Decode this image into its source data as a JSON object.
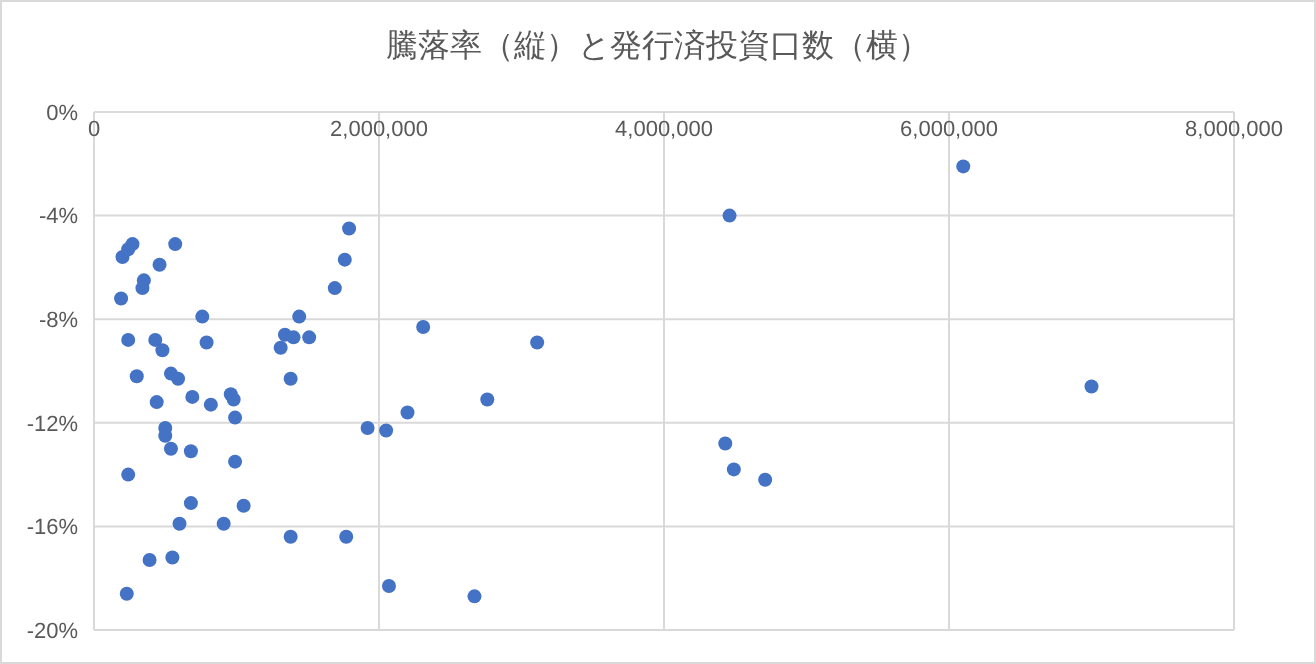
{
  "chart_data": {
    "type": "scatter",
    "title": "騰落率（縦）と発行済投資口数（横）",
    "x": [
      190000,
      200000,
      240000,
      270000,
      570000,
      460000,
      350000,
      340000,
      760000,
      790000,
      240000,
      430000,
      480000,
      300000,
      540000,
      590000,
      1310000,
      1340000,
      1400000,
      1440000,
      1510000,
      1690000,
      1760000,
      1790000,
      2310000,
      3110000,
      1380000,
      440000,
      690000,
      820000,
      960000,
      980000,
      990000,
      500000,
      500000,
      540000,
      680000,
      990000,
      240000,
      680000,
      1050000,
      600000,
      910000,
      1380000,
      1770000,
      390000,
      550000,
      230000,
      1920000,
      2050000,
      2200000,
      2760000,
      2070000,
      2670000,
      6100000,
      4460000,
      7000000,
      4430000,
      4490000,
      4710000
    ],
    "values": [
      -7.2,
      -5.6,
      -5.3,
      -5.1,
      -5.1,
      -5.9,
      -6.5,
      -6.8,
      -7.9,
      -8.9,
      -8.8,
      -8.8,
      -9.2,
      -10.2,
      -10.1,
      -10.3,
      -9.1,
      -8.6,
      -8.7,
      -7.9,
      -8.7,
      -6.8,
      -5.7,
      -4.5,
      -8.3,
      -8.9,
      -10.3,
      -11.2,
      -11.0,
      -11.3,
      -10.9,
      -11.1,
      -11.8,
      -12.2,
      -12.5,
      -13.0,
      -13.1,
      -13.5,
      -14.0,
      -15.1,
      -15.2,
      -15.9,
      -15.9,
      -16.4,
      -16.4,
      -17.3,
      -17.2,
      -18.6,
      -12.2,
      -12.3,
      -11.6,
      -11.1,
      -18.3,
      -18.7,
      -2.1,
      -4.0,
      -10.6,
      -12.8,
      -13.8,
      -14.2
    ],
    "color": "#4472c4",
    "marker": "circle",
    "grid": true,
    "xlim": [
      0,
      8000000
    ],
    "xticks": [
      {
        "value": 0,
        "label": "0"
      },
      {
        "value": 2000000,
        "label": "2,000,000"
      },
      {
        "value": 4000000,
        "label": "4,000,000"
      },
      {
        "value": 6000000,
        "label": "6,000,000"
      },
      {
        "value": 8000000,
        "label": "8,000,000"
      }
    ],
    "ylim": [
      -20,
      0
    ],
    "yticks": [
      {
        "value": -20,
        "label": "-20%"
      },
      {
        "value": -16,
        "label": "-16%"
      },
      {
        "value": -12,
        "label": "-12%"
      },
      {
        "value": -8,
        "label": "-8%"
      },
      {
        "value": -4,
        "label": "-4%"
      },
      {
        "value": 0,
        "label": "0%"
      }
    ]
  }
}
